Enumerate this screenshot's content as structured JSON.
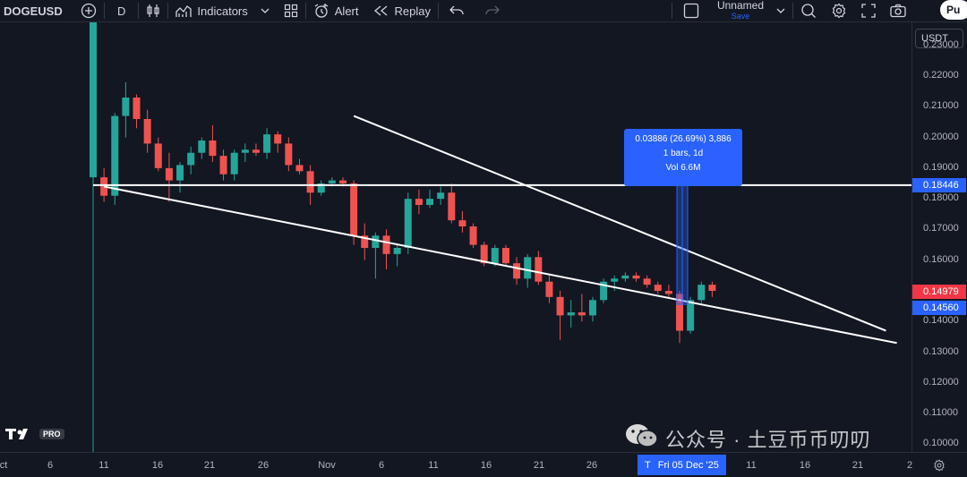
{
  "toolbar": {
    "symbol": "DOGEUSD",
    "interval": "D",
    "indicators_label": "Indicators",
    "alert_label": "Alert",
    "replay_label": "Replay",
    "layout_name": "Unnamed",
    "save_status": "Save",
    "publish_label": "Pu"
  },
  "price_axis": {
    "currency": "USDT",
    "ticks": [
      "0.23000",
      "0.22000",
      "0.21000",
      "0.20000",
      "0.19000",
      "0.18000",
      "0.17000",
      "0.16000",
      "0.15000",
      "0.14000",
      "0.13000",
      "0.12000",
      "0.11000",
      "0.10000"
    ],
    "label_high": "0.18446",
    "label_last": "0.14979",
    "label_low": "0.14560"
  },
  "time_axis": {
    "ticks": [
      "ct",
      "6",
      "11",
      "16",
      "21",
      "26",
      "Nov",
      "6",
      "11",
      "16",
      "21",
      "26",
      "11",
      "16",
      "21",
      "2"
    ],
    "cursor_prefix": "T",
    "cursor_label": "Fri 05 Dec '25"
  },
  "measure": {
    "line1": "0.03886 (26.69%) 3,886",
    "line2": "1 bars, 1d",
    "line3": "Vol 6.6M"
  },
  "watermark": {
    "text": "公众号 · 土豆币币叨叨"
  },
  "logo": {
    "badge": "PRO"
  },
  "colors": {
    "up": "#26a69a",
    "down": "#ef5350",
    "background": "#131722",
    "accent": "#2962ff"
  },
  "chart_data": {
    "type": "candlestick",
    "symbol": "DOGEUSD",
    "interval": "1D",
    "y_range": [
      0.0975,
      0.2375
    ],
    "candles": [
      {
        "o": 0.187,
        "h": 0.265,
        "l": 0.09,
        "c": 0.26
      },
      {
        "o": 0.187,
        "h": 0.19,
        "l": 0.179,
        "c": 0.181
      },
      {
        "o": 0.181,
        "h": 0.208,
        "l": 0.178,
        "c": 0.207
      },
      {
        "o": 0.207,
        "h": 0.218,
        "l": 0.2,
        "c": 0.213
      },
      {
        "o": 0.213,
        "h": 0.214,
        "l": 0.203,
        "c": 0.206
      },
      {
        "o": 0.206,
        "h": 0.209,
        "l": 0.195,
        "c": 0.198
      },
      {
        "o": 0.198,
        "h": 0.2,
        "l": 0.189,
        "c": 0.19
      },
      {
        "o": 0.19,
        "h": 0.195,
        "l": 0.179,
        "c": 0.186
      },
      {
        "o": 0.186,
        "h": 0.192,
        "l": 0.182,
        "c": 0.191
      },
      {
        "o": 0.191,
        "h": 0.197,
        "l": 0.188,
        "c": 0.195
      },
      {
        "o": 0.195,
        "h": 0.2,
        "l": 0.193,
        "c": 0.199
      },
      {
        "o": 0.199,
        "h": 0.204,
        "l": 0.192,
        "c": 0.194
      },
      {
        "o": 0.194,
        "h": 0.196,
        "l": 0.186,
        "c": 0.188
      },
      {
        "o": 0.188,
        "h": 0.196,
        "l": 0.186,
        "c": 0.195
      },
      {
        "o": 0.195,
        "h": 0.198,
        "l": 0.192,
        "c": 0.196
      },
      {
        "o": 0.196,
        "h": 0.198,
        "l": 0.194,
        "c": 0.195
      },
      {
        "o": 0.195,
        "h": 0.203,
        "l": 0.193,
        "c": 0.201
      },
      {
        "o": 0.201,
        "h": 0.202,
        "l": 0.195,
        "c": 0.198
      },
      {
        "o": 0.198,
        "h": 0.2,
        "l": 0.189,
        "c": 0.191
      },
      {
        "o": 0.191,
        "h": 0.193,
        "l": 0.188,
        "c": 0.189
      },
      {
        "o": 0.189,
        "h": 0.191,
        "l": 0.178,
        "c": 0.182
      },
      {
        "o": 0.182,
        "h": 0.186,
        "l": 0.181,
        "c": 0.185
      },
      {
        "o": 0.185,
        "h": 0.187,
        "l": 0.184,
        "c": 0.186
      },
      {
        "o": 0.186,
        "h": 0.187,
        "l": 0.184,
        "c": 0.185
      },
      {
        "o": 0.185,
        "h": 0.186,
        "l": 0.165,
        "c": 0.168
      },
      {
        "o": 0.168,
        "h": 0.172,
        "l": 0.16,
        "c": 0.164
      },
      {
        "o": 0.164,
        "h": 0.169,
        "l": 0.154,
        "c": 0.168
      },
      {
        "o": 0.168,
        "h": 0.17,
        "l": 0.157,
        "c": 0.162
      },
      {
        "o": 0.162,
        "h": 0.165,
        "l": 0.158,
        "c": 0.164
      },
      {
        "o": 0.164,
        "h": 0.182,
        "l": 0.162,
        "c": 0.18
      },
      {
        "o": 0.18,
        "h": 0.183,
        "l": 0.175,
        "c": 0.178
      },
      {
        "o": 0.178,
        "h": 0.183,
        "l": 0.177,
        "c": 0.18
      },
      {
        "o": 0.18,
        "h": 0.184,
        "l": 0.178,
        "c": 0.182
      },
      {
        "o": 0.182,
        "h": 0.185,
        "l": 0.172,
        "c": 0.173
      },
      {
        "o": 0.173,
        "h": 0.176,
        "l": 0.169,
        "c": 0.171
      },
      {
        "o": 0.171,
        "h": 0.172,
        "l": 0.164,
        "c": 0.165
      },
      {
        "o": 0.165,
        "h": 0.166,
        "l": 0.158,
        "c": 0.159
      },
      {
        "o": 0.159,
        "h": 0.165,
        "l": 0.158,
        "c": 0.164
      },
      {
        "o": 0.164,
        "h": 0.165,
        "l": 0.158,
        "c": 0.159
      },
      {
        "o": 0.159,
        "h": 0.161,
        "l": 0.152,
        "c": 0.154
      },
      {
        "o": 0.154,
        "h": 0.162,
        "l": 0.151,
        "c": 0.161
      },
      {
        "o": 0.161,
        "h": 0.163,
        "l": 0.152,
        "c": 0.153
      },
      {
        "o": 0.153,
        "h": 0.155,
        "l": 0.146,
        "c": 0.148
      },
      {
        "o": 0.148,
        "h": 0.15,
        "l": 0.134,
        "c": 0.142
      },
      {
        "o": 0.142,
        "h": 0.147,
        "l": 0.138,
        "c": 0.143
      },
      {
        "o": 0.143,
        "h": 0.149,
        "l": 0.14,
        "c": 0.142
      },
      {
        "o": 0.142,
        "h": 0.148,
        "l": 0.14,
        "c": 0.147
      },
      {
        "o": 0.147,
        "h": 0.154,
        "l": 0.146,
        "c": 0.153
      },
      {
        "o": 0.153,
        "h": 0.155,
        "l": 0.15,
        "c": 0.154
      },
      {
        "o": 0.154,
        "h": 0.156,
        "l": 0.153,
        "c": 0.155
      },
      {
        "o": 0.155,
        "h": 0.156,
        "l": 0.153,
        "c": 0.154
      },
      {
        "o": 0.154,
        "h": 0.155,
        "l": 0.151,
        "c": 0.152
      },
      {
        "o": 0.152,
        "h": 0.153,
        "l": 0.149,
        "c": 0.15
      },
      {
        "o": 0.15,
        "h": 0.152,
        "l": 0.148,
        "c": 0.149
      },
      {
        "o": 0.149,
        "h": 0.15,
        "l": 0.133,
        "c": 0.137
      },
      {
        "o": 0.137,
        "h": 0.148,
        "l": 0.136,
        "c": 0.147
      },
      {
        "o": 0.147,
        "h": 0.153,
        "l": 0.146,
        "c": 0.152
      },
      {
        "o": 0.152,
        "h": 0.153,
        "l": 0.148,
        "c": 0.15
      }
    ],
    "horizontal_line": 0.18446,
    "trendlines": [
      {
        "name": "upper",
        "from": {
          "bar": 24,
          "price": 0.207
        },
        "to": {
          "bar": 73,
          "price": 0.137
        }
      },
      {
        "name": "lower",
        "from": {
          "bar": 1,
          "price": 0.184
        },
        "to": {
          "bar": 74,
          "price": 0.133
        }
      }
    ],
    "measurement": {
      "from_price": 0.1456,
      "to_price": 0.18446,
      "change": "0.03886 (26.69%) 3,886",
      "bars": "1 bars, 1d",
      "volume": "Vol 6.6M"
    }
  }
}
